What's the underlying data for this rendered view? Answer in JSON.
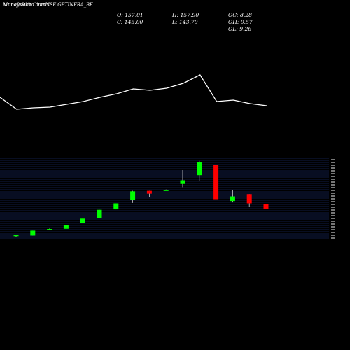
{
  "header": {
    "title": "MunafaSutra.com",
    "subtitle": "NSE GPTINFRA_BE",
    "overlay": "Moneysukh Charts"
  },
  "stats": {
    "open": "O: 157.01",
    "high": "H: 157.90",
    "close": "C: 145.00",
    "low": "L: 143.70",
    "oc": "OC: 8.28",
    "oh": "OH: 0.57",
    "ol": "OL: 9.26"
  },
  "colors": {
    "up": "#00ff00",
    "down": "#ff0000",
    "line": "#ffffff",
    "grid": "#1e3a8a",
    "background": "#000000"
  },
  "chart_data": {
    "type": "candlestick",
    "candles": [
      {
        "open": 0.5,
        "high": 2.0,
        "low": 0.0,
        "close": 2.0
      },
      {
        "open": 1.2,
        "high": 6.5,
        "low": 1.2,
        "close": 6.5
      },
      {
        "open": 7.5,
        "high": 8.6,
        "low": 7.0,
        "close": 8.3
      },
      {
        "open": 8.5,
        "high": 12.5,
        "low": 8.5,
        "close": 12.5
      },
      {
        "open": 14.5,
        "high": 19.5,
        "low": 14.5,
        "close": 19.5
      },
      {
        "open": 20.0,
        "high": 29.0,
        "low": 20.0,
        "close": 29.0
      },
      {
        "open": 29.5,
        "high": 36.0,
        "low": 29.5,
        "close": 36.0
      },
      {
        "open": 39.5,
        "high": 49.5,
        "low": 36.5,
        "close": 49.0
      },
      {
        "open": 49.5,
        "high": 49.5,
        "low": 43.0,
        "close": 46.5
      },
      {
        "open": 50.0,
        "high": 51.0,
        "low": 50.0,
        "close": 50.5
      },
      {
        "open": 57.0,
        "high": 72.0,
        "low": 53.5,
        "close": 61.0
      },
      {
        "open": 66.5,
        "high": 82.0,
        "low": 60.0,
        "close": 80.5
      },
      {
        "open": 78.0,
        "high": 84.5,
        "low": 31.0,
        "close": 40.5
      },
      {
        "open": 38.5,
        "high": 50.0,
        "low": 37.0,
        "close": 43.5
      },
      {
        "open": 46.0,
        "high": 46.0,
        "low": 32.5,
        "close": 36.0
      },
      {
        "open": 35.5,
        "high": 35.5,
        "low": 30.0,
        "close": 30.0
      }
    ],
    "line": [
      86,
      69,
      71,
      72,
      76,
      80,
      86,
      91,
      98,
      96,
      99,
      106,
      118,
      80,
      82,
      77,
      74
    ],
    "grid": true
  }
}
